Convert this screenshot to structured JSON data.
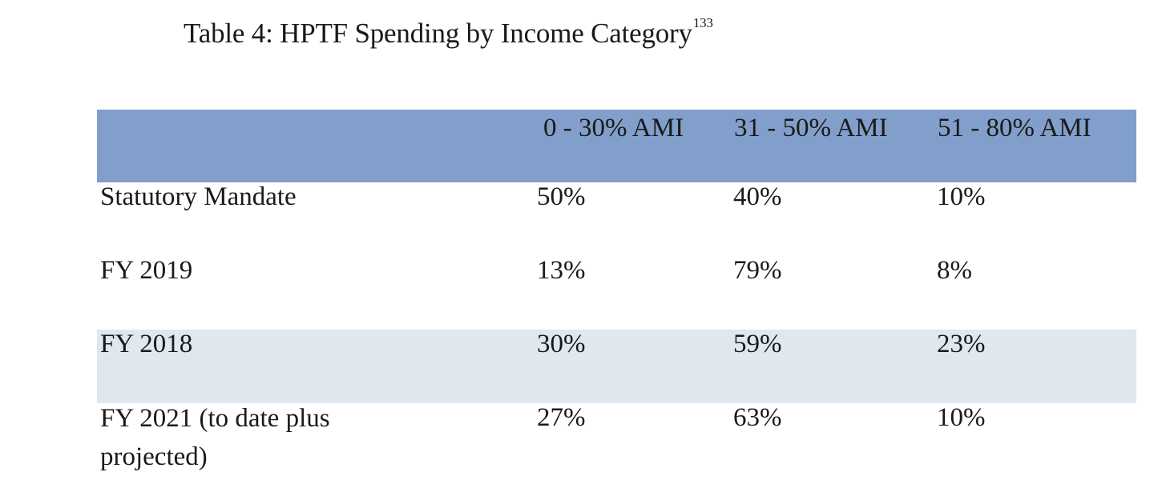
{
  "title": {
    "text": "Table 4: HPTF Spending by Income Category",
    "footnote": "133"
  },
  "table": {
    "headers": [
      "",
      "0 - 30% AMI",
      "31 - 50% AMI",
      "51 - 80% AMI"
    ],
    "rows": [
      {
        "label": "Statutory Mandate",
        "values": [
          "50%",
          "40%",
          "10%"
        ],
        "shaded": false
      },
      {
        "label": "FY 2019",
        "values": [
          "13%",
          "79%",
          "8%"
        ],
        "shaded": false
      },
      {
        "label": "FY 2018",
        "values": [
          "30%",
          "59%",
          "23%"
        ],
        "shaded": true
      },
      {
        "label": "FY 2021 (to date plus projected)",
        "values": [
          "27%",
          "63%",
          "10%"
        ],
        "shaded": false
      }
    ]
  },
  "colors": {
    "header_bg": "#819fca",
    "shaded_row_bg": "#dfe7ef"
  }
}
